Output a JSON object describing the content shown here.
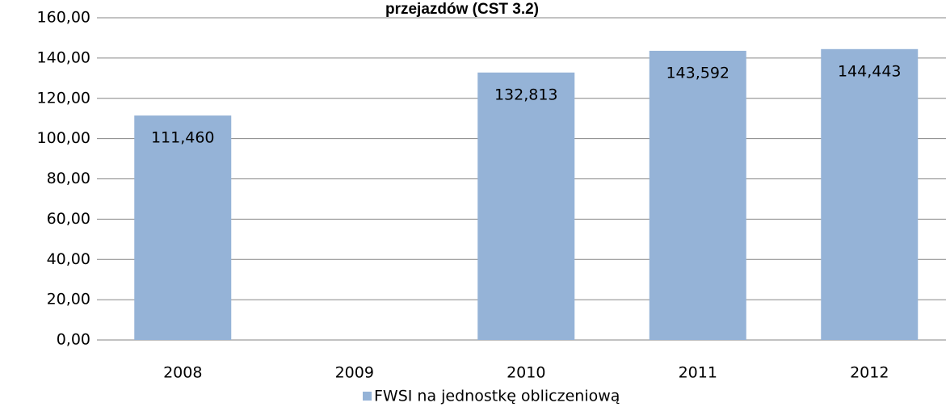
{
  "chart_data": {
    "type": "bar",
    "title": "przejazdów (CST 3.2)",
    "categories": [
      "2008",
      "2009",
      "2010",
      "2011",
      "2012"
    ],
    "series": [
      {
        "name": "FWSI na jednostkę obliczeniową",
        "color": "#95b3d7",
        "values": [
          111.46,
          null,
          132.813,
          143.592,
          144.443
        ],
        "value_labels": [
          "111,460",
          null,
          "132,813",
          "143,592",
          "144,443"
        ]
      }
    ],
    "ylim": [
      0,
      160
    ],
    "yticks": [
      {
        "value": 0,
        "label": "0,00"
      },
      {
        "value": 20,
        "label": "20,00"
      },
      {
        "value": 40,
        "label": "40,00"
      },
      {
        "value": 60,
        "label": "60,00"
      },
      {
        "value": 80,
        "label": "80,00"
      },
      {
        "value": 100,
        "label": "100,00"
      },
      {
        "value": 120,
        "label": "120,00"
      },
      {
        "value": 140,
        "label": "140,00"
      },
      {
        "value": 160,
        "label": "160,00"
      }
    ],
    "grid": true,
    "legend": "bottom"
  }
}
